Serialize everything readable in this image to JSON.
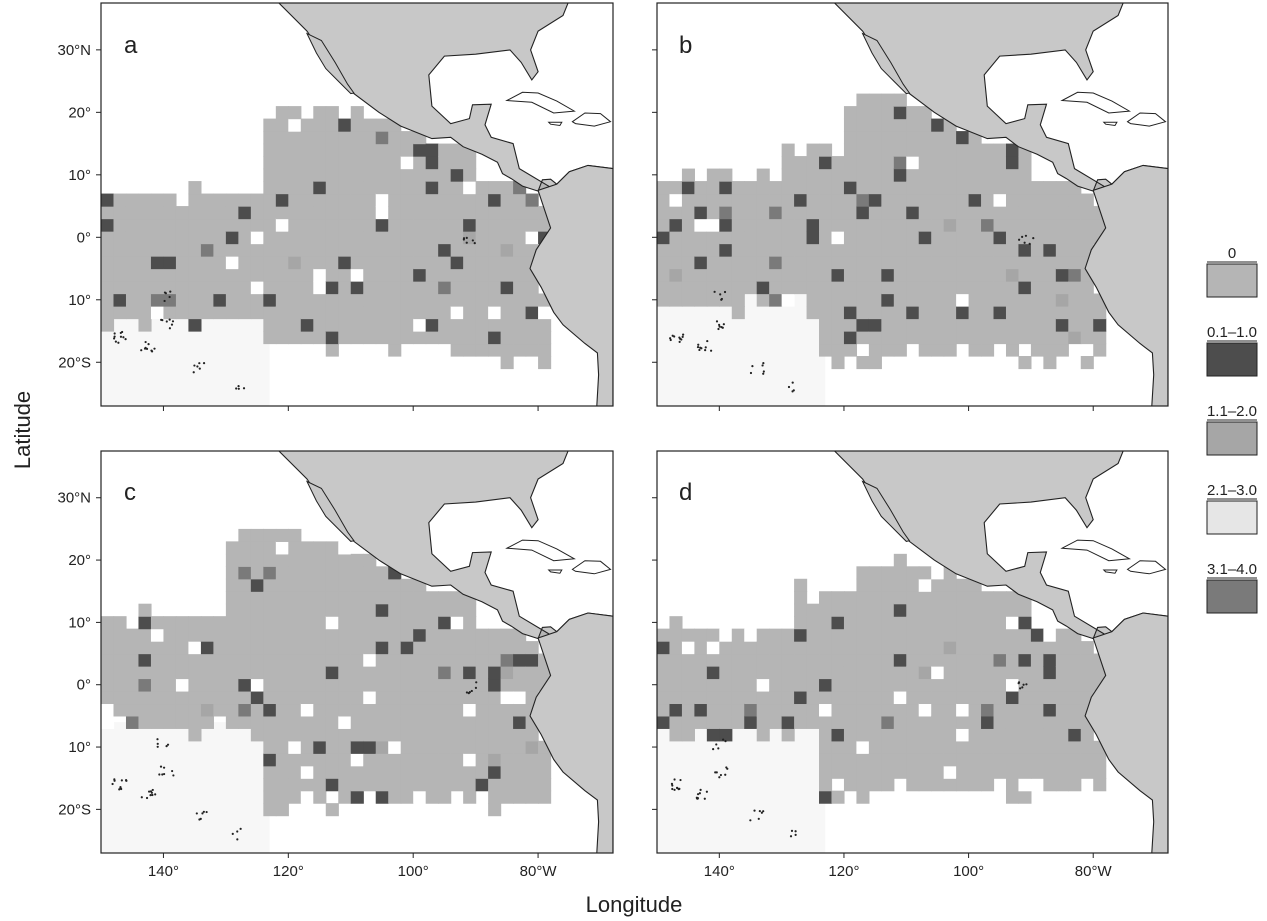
{
  "axes": {
    "xlabel": "Longitude",
    "ylabel": "Latitude"
  },
  "x_ticks": [
    {
      "lon": -140,
      "label": "140°"
    },
    {
      "lon": -120,
      "label": "120°"
    },
    {
      "lon": -100,
      "label": "100°"
    },
    {
      "lon": -80,
      "label": "80°W"
    }
  ],
  "y_ticks": [
    {
      "lat": 30,
      "label": "30°N"
    },
    {
      "lat": 20,
      "label": "20°"
    },
    {
      "lat": 10,
      "label": "10°"
    },
    {
      "lat": 0,
      "label": "0°"
    },
    {
      "lat": -10,
      "label": "10°"
    },
    {
      "lat": -20,
      "label": "20°S"
    }
  ],
  "extent": {
    "lon": [
      -150,
      -68
    ],
    "lat": [
      -27,
      37.5
    ]
  },
  "panels": [
    {
      "id": "a",
      "label": "a"
    },
    {
      "id": "b",
      "label": "b"
    },
    {
      "id": "c",
      "label": "c"
    },
    {
      "id": "d",
      "label": "d"
    }
  ],
  "legend": [
    {
      "label": "0",
      "color": "#b5b5b5"
    },
    {
      "label": "0.1–1.0",
      "color": "#4d4d4d"
    },
    {
      "label": "1.1–2.0",
      "color": "#a6a6a6"
    },
    {
      "label": "2.1–3.0",
      "color": "#e6e6e6"
    },
    {
      "label": "3.1–4.0",
      "color": "#7a7a7a"
    }
  ],
  "colors": {
    "land": "#c8c8c8",
    "ocean_zero": "#b5b5b5",
    "low": "#4d4d4d",
    "mid": "#a6a6a6",
    "high": "#e6e6e6",
    "top": "#7a7a7a",
    "nodata": "#ffffff",
    "frame": "#222222"
  }
}
